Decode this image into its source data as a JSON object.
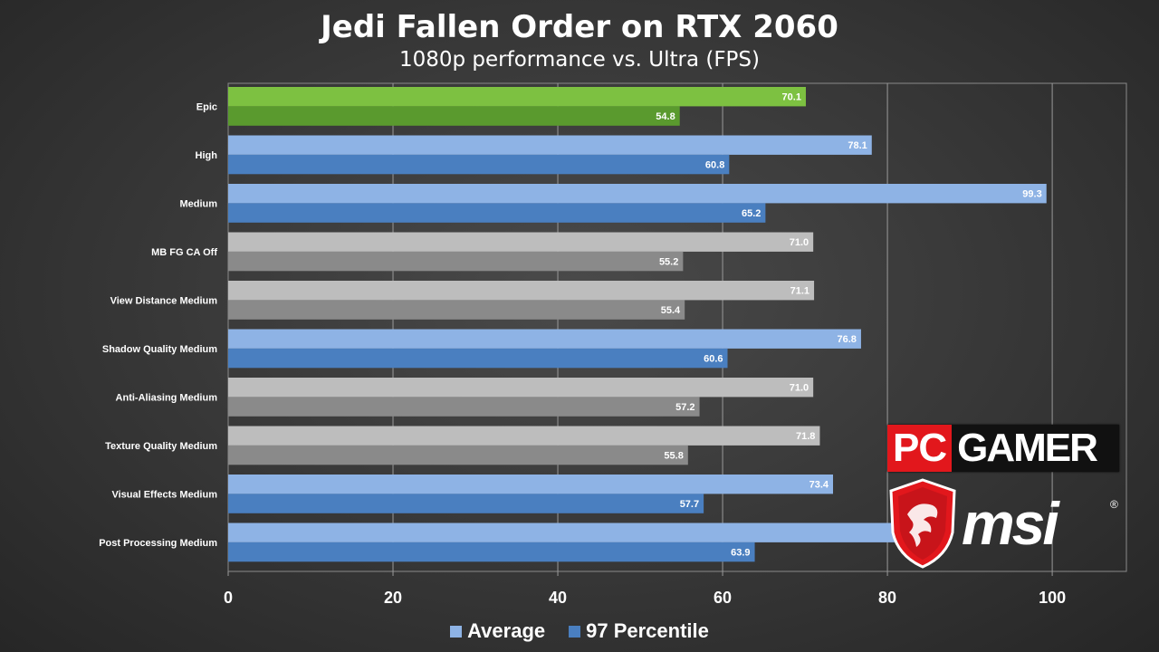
{
  "title": "Jedi Fallen Order on RTX 2060",
  "subtitle": "1080p performance vs. Ultra (FPS)",
  "legend": {
    "average_label": "Average",
    "percentile_label": "97 Percentile"
  },
  "logos": {
    "pc_text": "PC",
    "gamer_text": "GAMER",
    "msi_text": "msi",
    "registered_mark": "®"
  },
  "colors": {
    "green_avg": "#7dc141",
    "green_pct": "#5a9a2e",
    "blue_avg": "#8eb3e5",
    "blue_pct": "#4a7fc0",
    "gray_avg": "#bdbdbd",
    "gray_pct": "#8a8a8a"
  },
  "chart_data": {
    "type": "bar",
    "orientation": "horizontal",
    "title": "Jedi Fallen Order on RTX 2060",
    "subtitle": "1080p performance vs. Ultra (FPS)",
    "categories": [
      "Epic",
      "High",
      "Medium",
      "MB FG CA Off",
      "View Distance Medium",
      "Shadow Quality Medium",
      "Anti-Aliasing Medium",
      "Texture Quality Medium",
      "Visual Effects Medium",
      "Post Processing Medium"
    ],
    "series": [
      {
        "name": "Average",
        "values": [
          70.1,
          78.1,
          99.3,
          71.0,
          71.1,
          76.8,
          71.0,
          71.8,
          73.4,
          83.5
        ]
      },
      {
        "name": "97 Percentile",
        "values": [
          54.8,
          60.8,
          65.2,
          55.2,
          55.4,
          60.6,
          57.2,
          55.8,
          57.7,
          63.9
        ]
      }
    ],
    "value_labels": [
      [
        "70.1",
        "54.8"
      ],
      [
        "78.1",
        "60.8"
      ],
      [
        "99.3",
        "65.2"
      ],
      [
        "71.0",
        "55.2"
      ],
      [
        "71.1",
        "55.4"
      ],
      [
        "76.8",
        "60.6"
      ],
      [
        "71.0",
        "57.2"
      ],
      [
        "71.8",
        "55.8"
      ],
      [
        "73.4",
        "57.7"
      ],
      [
        "83.5",
        "63.9"
      ]
    ],
    "bar_color_groups": [
      "green",
      "blue",
      "blue",
      "gray",
      "gray",
      "blue",
      "gray",
      "gray",
      "blue",
      "blue"
    ],
    "xlim": [
      0,
      109
    ],
    "xticks": [
      0,
      20,
      40,
      60,
      80,
      100
    ],
    "grid": true,
    "legend_position": "bottom"
  }
}
